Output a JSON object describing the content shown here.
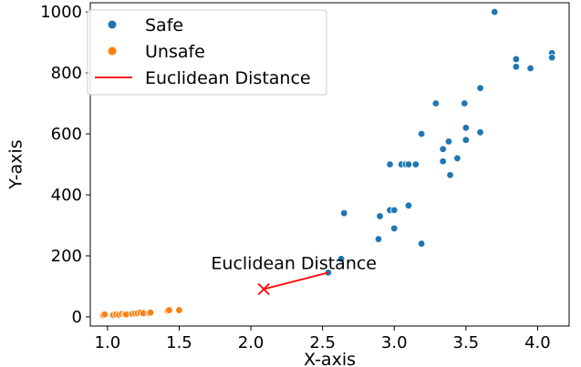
{
  "chart_data": {
    "type": "scatter",
    "xlabel": "X-axis",
    "ylabel": "Y-axis",
    "xlim": [
      0.88,
      4.22
    ],
    "ylim": [
      -30,
      1030
    ],
    "xticks": [
      1.0,
      1.5,
      2.0,
      2.5,
      3.0,
      3.5,
      4.0
    ],
    "xtick_labels": [
      "1.0",
      "1.5",
      "2.0",
      "2.5",
      "3.0",
      "3.5",
      "4.0"
    ],
    "yticks": [
      0,
      200,
      400,
      600,
      800,
      1000
    ],
    "ytick_labels": [
      "0",
      "200",
      "400",
      "600",
      "800",
      "1000"
    ],
    "grid": false,
    "legend_position": "top-left",
    "series": [
      {
        "name": "Safe",
        "color": "#1f77b4",
        "points": [
          [
            2.54,
            145
          ],
          [
            2.63,
            190
          ],
          [
            2.65,
            340
          ],
          [
            2.89,
            255
          ],
          [
            2.9,
            330
          ],
          [
            2.97,
            350
          ],
          [
            2.97,
            500
          ],
          [
            3.0,
            350
          ],
          [
            3.0,
            290
          ],
          [
            3.05,
            500
          ],
          [
            3.08,
            500
          ],
          [
            3.1,
            365
          ],
          [
            3.1,
            500
          ],
          [
            3.15,
            500
          ],
          [
            3.19,
            600
          ],
          [
            3.19,
            240
          ],
          [
            3.29,
            700
          ],
          [
            3.34,
            550
          ],
          [
            3.34,
            510
          ],
          [
            3.38,
            575
          ],
          [
            3.39,
            465
          ],
          [
            3.44,
            520
          ],
          [
            3.49,
            700
          ],
          [
            3.5,
            620
          ],
          [
            3.5,
            580
          ],
          [
            3.6,
            750
          ],
          [
            3.6,
            605
          ],
          [
            3.7,
            1000
          ],
          [
            3.85,
            845
          ],
          [
            3.85,
            820
          ],
          [
            3.95,
            815
          ],
          [
            4.1,
            865
          ],
          [
            4.1,
            850
          ]
        ]
      },
      {
        "name": "Unsafe",
        "color": "#ff7f0e",
        "points": [
          [
            0.97,
            5
          ],
          [
            0.98,
            8
          ],
          [
            1.04,
            6
          ],
          [
            1.06,
            8
          ],
          [
            1.08,
            7
          ],
          [
            1.1,
            10
          ],
          [
            1.12,
            9
          ],
          [
            1.13,
            8
          ],
          [
            1.17,
            10
          ],
          [
            1.19,
            11
          ],
          [
            1.21,
            12
          ],
          [
            1.23,
            14
          ],
          [
            1.25,
            12
          ],
          [
            1.29,
            12
          ],
          [
            1.3,
            14
          ],
          [
            1.42,
            20
          ],
          [
            1.43,
            22
          ],
          [
            1.5,
            22
          ]
        ]
      }
    ],
    "euclidean_distance": {
      "label": "Euclidean Distance",
      "color": "#ff0000",
      "from": [
        2.09,
        91
      ],
      "to": [
        2.54,
        145
      ],
      "marker": "x"
    },
    "annotation": {
      "text": "Euclidean Distance",
      "x": 2.3,
      "y": 148
    }
  }
}
